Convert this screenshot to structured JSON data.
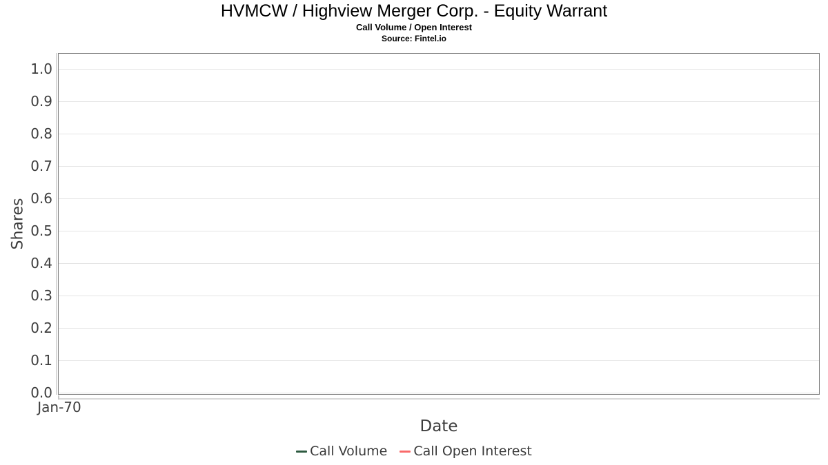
{
  "header": {
    "title": "HVMCW / Highview Merger Corp. - Equity Warrant",
    "subtitle": "Call Volume / Open Interest",
    "source": "Source: Fintel.io"
  },
  "chart_data": {
    "type": "line",
    "title": "HVMCW / Highview Merger Corp. - Equity Warrant",
    "subtitle": "Call Volume / Open Interest",
    "source": "Source: Fintel.io",
    "xlabel": "Date",
    "ylabel": "Shares",
    "x_ticks": [
      "Jan-70"
    ],
    "y_ticks": [
      {
        "label": "1.0",
        "value": 1.0
      },
      {
        "label": "0.9",
        "value": 0.9
      },
      {
        "label": "0.8",
        "value": 0.8
      },
      {
        "label": "0.7",
        "value": 0.7
      },
      {
        "label": "0.6",
        "value": 0.6
      },
      {
        "label": "0.5",
        "value": 0.5
      },
      {
        "label": "0.4",
        "value": 0.4
      },
      {
        "label": "0.3",
        "value": 0.3
      },
      {
        "label": "0.2",
        "value": 0.2
      },
      {
        "label": "0.1",
        "value": 0.1
      },
      {
        "label": "0.0",
        "value": 0.0
      }
    ],
    "ylim": [
      0.0,
      1.05
    ],
    "grid": "horizontal-only",
    "legend_position": "bottom",
    "series": [
      {
        "name": "Call Volume",
        "color": "#2d5a40",
        "values": []
      },
      {
        "name": "Call Open Interest",
        "color": "#f96a6a",
        "values": []
      }
    ],
    "empty": true
  },
  "colors": {
    "panel_border": "#7e7e7e",
    "gridline": "#e5e5e5",
    "axis_line": "#d8d8d8",
    "tick_text": "#3d3d3d",
    "title_text": "#000000",
    "legend_text": "#3a3a3a",
    "call_volume": "#2d5a40",
    "call_open_interest": "#f96a6a"
  }
}
